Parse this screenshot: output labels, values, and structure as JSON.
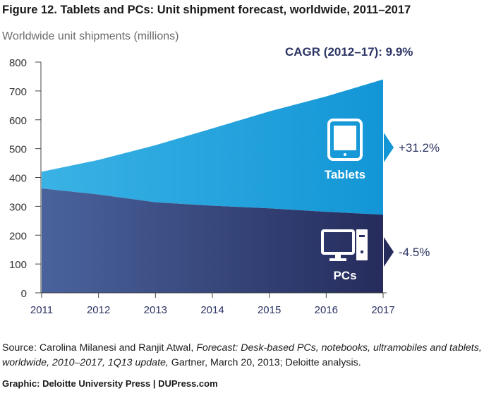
{
  "figure": {
    "title": "Figure 12. Tablets and PCs: Unit shipment forecast, worldwide, 2011–2017",
    "cagr_label": "CAGR (2012–17): 9.9%"
  },
  "chart_data": {
    "type": "area",
    "stacked": true,
    "ylabel": "Worldwide unit shipments (millions)",
    "xlabel": "",
    "ylim": [
      0,
      800
    ],
    "yticks": [
      0,
      100,
      200,
      300,
      400,
      500,
      600,
      700,
      800
    ],
    "x": [
      "2011",
      "2012",
      "2013",
      "2014",
      "2015",
      "2016",
      "2017"
    ],
    "series": [
      {
        "name": "PCs",
        "values": [
          362,
          341,
          314,
          302,
          293,
          281,
          271
        ],
        "color_top": "#2e3e7e",
        "color_left": "#4a639d",
        "color_right": "#252c5c",
        "growth": "-4.5%"
      },
      {
        "name": "Tablets",
        "values": [
          58,
          120,
          198,
          268,
          336,
          400,
          469
        ],
        "color_left": "#3ab2e5",
        "color_right": "#1396d6",
        "growth": "+31.2%"
      }
    ],
    "totals": [
      420,
      461,
      512,
      570,
      629,
      681,
      740
    ],
    "grid": false,
    "icons": [
      "tablet-icon",
      "desktop-pc-icon"
    ]
  },
  "source": {
    "prefix": "Source: Carolina Milanesi and Ranjit Atwal, ",
    "italic": "Forecast: Desk-based PCs, notebooks, ultramobiles and tablets, worldwide, 2010–2017, 1Q13 update,",
    "suffix": " Gartner, March 20, 2013; Deloitte analysis."
  },
  "credit": "Graphic: Deloitte University Press  |  DUPress.com"
}
